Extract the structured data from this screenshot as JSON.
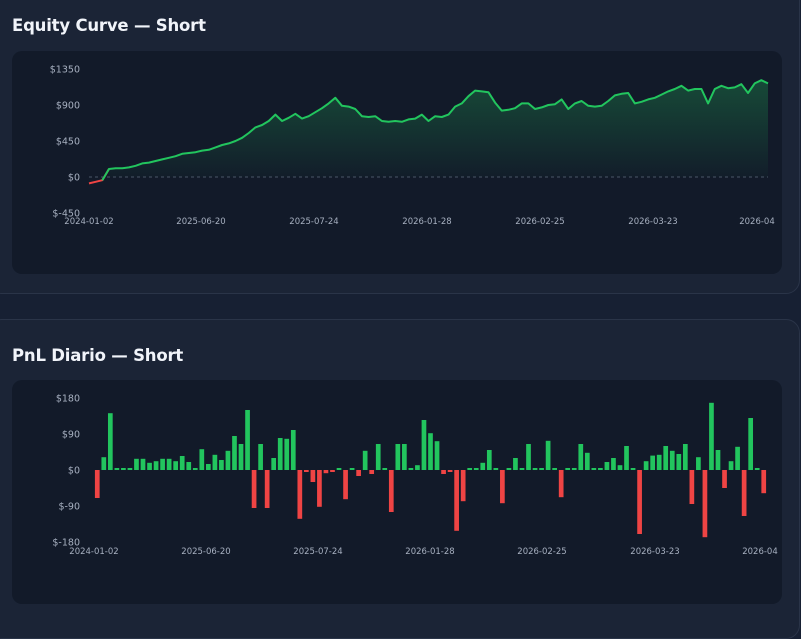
{
  "equity": {
    "title": "Equity Curve — Short",
    "chart_data": {
      "type": "line",
      "title": "Equity Curve — Short",
      "xlabel": "",
      "ylabel": "",
      "ylim": [
        -450,
        1350
      ],
      "y_ticks": [
        "$1350",
        "$900",
        "$450",
        "$0",
        "$-450"
      ],
      "y_tick_values": [
        1350,
        900,
        450,
        0,
        -450
      ],
      "x_tick_labels": [
        "2024-01-02",
        "2025-06-20",
        "2025-07-24",
        "2026-01-28",
        "2026-02-25",
        "2026-03-23",
        "2026-04"
      ],
      "zero_line": true,
      "grid": false,
      "colors": {
        "positive": "#22c55e",
        "negative": "#ef4444"
      },
      "series": [
        {
          "values": [
            -80,
            -60,
            -40,
            100,
            110,
            110,
            120,
            140,
            170,
            180,
            200,
            220,
            240,
            260,
            290,
            300,
            310,
            330,
            340,
            370,
            400,
            420,
            450,
            490,
            550,
            620,
            650,
            700,
            780,
            700,
            740,
            790,
            730,
            760,
            810,
            860,
            920,
            990,
            890,
            880,
            850,
            760,
            750,
            760,
            700,
            690,
            700,
            690,
            720,
            730,
            780,
            700,
            760,
            750,
            780,
            880,
            920,
            1010,
            1080,
            1070,
            1060,
            930,
            830,
            840,
            860,
            920,
            920,
            850,
            870,
            900,
            910,
            970,
            850,
            920,
            950,
            890,
            880,
            890,
            950,
            1020,
            1040,
            1050,
            920,
            940,
            970,
            990,
            1030,
            1070,
            1100,
            1140,
            1080,
            1100,
            1100,
            920,
            1100,
            1140,
            1110,
            1120,
            1160,
            1050,
            1170,
            1210,
            1170
          ]
        }
      ]
    }
  },
  "pnl": {
    "title": "PnL Diario — Short",
    "chart_data": {
      "type": "bar",
      "title": "PnL Diario — Short",
      "xlabel": "",
      "ylabel": "",
      "ylim": [
        -180,
        180
      ],
      "y_ticks": [
        "$180",
        "$90",
        "$0",
        "$-90",
        "$-180"
      ],
      "y_tick_values": [
        180,
        90,
        0,
        -90,
        -180
      ],
      "x_tick_labels": [
        "2024-01-02",
        "2025-06-20",
        "2025-07-24",
        "2026-01-28",
        "2026-02-25",
        "2026-03-23",
        "2026-04"
      ],
      "grid": false,
      "colors": {
        "positive": "#22c55e",
        "negative": "#ef4444"
      },
      "values": [
        -70,
        32,
        142,
        5,
        5,
        5,
        28,
        28,
        18,
        22,
        28,
        28,
        22,
        35,
        20,
        5,
        52,
        15,
        38,
        25,
        48,
        85,
        65,
        150,
        -95,
        65,
        -95,
        30,
        80,
        78,
        100,
        -122,
        -5,
        -30,
        -92,
        -8,
        -5,
        5,
        -73,
        5,
        -15,
        48,
        -10,
        65,
        5,
        -105,
        65,
        65,
        5,
        12,
        125,
        92,
        72,
        -10,
        -5,
        -152,
        -78,
        5,
        5,
        18,
        50,
        5,
        -83,
        5,
        30,
        5,
        65,
        5,
        5,
        73,
        5,
        -68,
        5,
        5,
        65,
        43,
        5,
        5,
        20,
        30,
        12,
        60,
        5,
        -160,
        22,
        36,
        38,
        60,
        48,
        40,
        65,
        -85,
        32,
        -168,
        168,
        50,
        -45,
        22,
        58,
        -115,
        130,
        5,
        -58
      ]
    }
  }
}
